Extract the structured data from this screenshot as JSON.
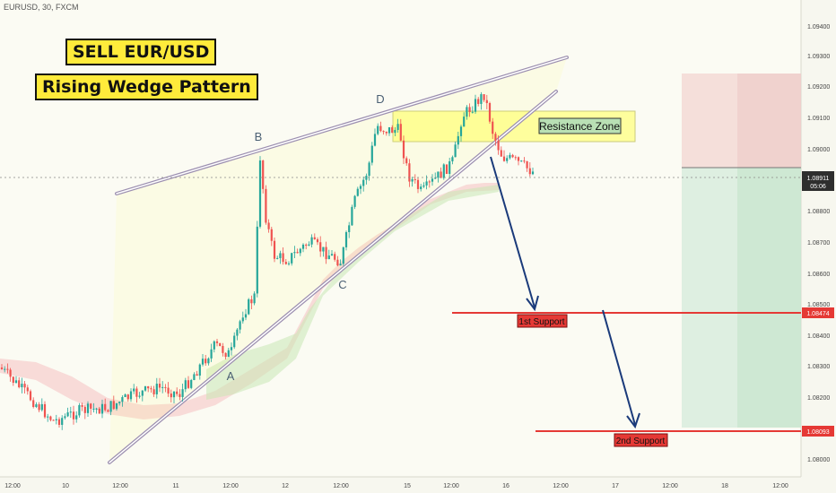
{
  "header": {
    "symbol": "EURUSD, 30, FXCM",
    "title": "SELL EUR/USD",
    "subtitle": "Rising Wedge Pattern"
  },
  "chart_data": {
    "type": "candlestick",
    "y_axis": {
      "range": [
        1.0795,
        1.0952
      ],
      "ticks": [
        "1.09400",
        "1.09300",
        "1.09200",
        "1.09100",
        "1.09000",
        "1.08800",
        "1.08700",
        "1.08600",
        "1.08500",
        "1.08400",
        "1.08300",
        "1.08200",
        "1.08000"
      ]
    },
    "x_axis": {
      "ticks": [
        "12:00",
        "10",
        "12:00",
        "11",
        "12:00",
        "12",
        "12:00",
        "15",
        "12:00",
        "16",
        "12:00",
        "17",
        "12:00",
        "18",
        "12:00"
      ]
    },
    "price": {
      "current": "1.08911",
      "countdown": "05:06",
      "level": 1.08911
    },
    "point_labels": [
      "A",
      "B",
      "C",
      "D"
    ],
    "zone_label": "Resistance Zone",
    "supports": [
      {
        "label": "1st Support",
        "price": "1.08474",
        "level": 1.08474
      },
      {
        "label": "2nd Support",
        "price": "1.08093",
        "level": 1.08093
      }
    ],
    "colors": {
      "bull": "#26a69a",
      "bear": "#ef5350",
      "wedge": "#9c8fb0",
      "support": "#e53935",
      "arrow": "#1a3a7a",
      "zone": "#ffff8f"
    }
  }
}
